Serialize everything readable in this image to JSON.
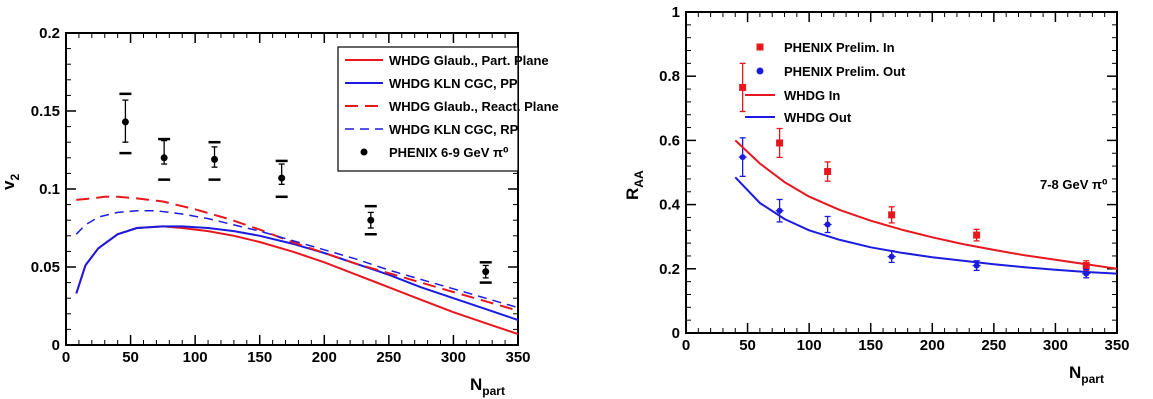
{
  "chart_data": [
    {
      "type": "line",
      "xlabel": "N",
      "xlabel_sub": "part",
      "ylabel": "v",
      "ylabel_sub": "2",
      "xlim": [
        0,
        350
      ],
      "ylim": [
        0,
        0.2
      ],
      "xticks": [
        0,
        50,
        100,
        150,
        200,
        250,
        300,
        350
      ],
      "xtick_labels": [
        "0",
        "50",
        "100",
        "150",
        "200",
        "250",
        "300",
        "350"
      ],
      "yticks": [
        0,
        0.05,
        0.1,
        0.15,
        0.2
      ],
      "ytick_labels": [
        "0",
        "0.05",
        "0.1",
        "0.15",
        "0.2"
      ],
      "grid": false,
      "legend_position": "top-right",
      "series": [
        {
          "name": "WHDG Glaub., Part. Plane",
          "kind": "line",
          "color": "#e8171d",
          "dash": "solid",
          "width": 2,
          "x": [
            8,
            15,
            25,
            40,
            55,
            75,
            90,
            110,
            130,
            150,
            175,
            200,
            225,
            250,
            275,
            300,
            325,
            350
          ],
          "y": [
            0.033,
            0.051,
            0.062,
            0.071,
            0.075,
            0.076,
            0.075,
            0.073,
            0.07,
            0.066,
            0.06,
            0.053,
            0.045,
            0.037,
            0.029,
            0.021,
            0.014,
            0.007
          ]
        },
        {
          "name": "WHDG KLN CGC, PP",
          "kind": "line",
          "color": "#1c1ce0",
          "dash": "solid",
          "width": 2,
          "x": [
            8,
            15,
            25,
            40,
            55,
            75,
            90,
            110,
            130,
            150,
            175,
            200,
            225,
            250,
            275,
            300,
            325,
            350
          ],
          "y": [
            0.033,
            0.051,
            0.062,
            0.071,
            0.075,
            0.076,
            0.076,
            0.075,
            0.073,
            0.07,
            0.065,
            0.059,
            0.052,
            0.045,
            0.037,
            0.03,
            0.023,
            0.016
          ]
        },
        {
          "name": "WHDG Glaub., React. Plane",
          "kind": "line",
          "color": "#e8171d",
          "dash": "long",
          "width": 2,
          "x": [
            8,
            20,
            30,
            40,
            55,
            75,
            100,
            125,
            150,
            175,
            200,
            225,
            250,
            275,
            300,
            325,
            350
          ],
          "y": [
            0.093,
            0.094,
            0.095,
            0.095,
            0.094,
            0.092,
            0.087,
            0.081,
            0.074,
            0.066,
            0.059,
            0.052,
            0.046,
            0.04,
            0.034,
            0.028,
            0.022
          ]
        },
        {
          "name": "WHDG KLN CGC, RP",
          "kind": "line",
          "color": "#1c1ce0",
          "dash": "medium",
          "width": 1.5,
          "x": [
            8,
            15,
            25,
            40,
            55,
            70,
            90,
            110,
            130,
            150,
            175,
            200,
            225,
            250,
            275,
            300,
            325,
            350
          ],
          "y": [
            0.071,
            0.077,
            0.082,
            0.085,
            0.086,
            0.086,
            0.084,
            0.081,
            0.077,
            0.073,
            0.067,
            0.061,
            0.055,
            0.048,
            0.042,
            0.036,
            0.03,
            0.024
          ]
        },
        {
          "name": "PHENIX 6-9 GeV π⁰",
          "kind": "points",
          "color": "#000000",
          "x": [
            46,
            76,
            115,
            167,
            236,
            325
          ],
          "y": [
            0.143,
            0.12,
            0.119,
            0.107,
            0.08,
            0.047
          ],
          "err_lo": [
            0.013,
            0.004,
            0.005,
            0.004,
            0.005,
            0.004
          ],
          "err_hi": [
            0.014,
            0.011,
            0.008,
            0.009,
            0.005,
            0.004
          ],
          "sys_lo": [
            0.02,
            0.014,
            0.013,
            0.012,
            0.009,
            0.007
          ],
          "sys_hi": [
            0.018,
            0.012,
            0.011,
            0.011,
            0.009,
            0.006
          ]
        }
      ]
    },
    {
      "type": "line",
      "xlabel": "N",
      "xlabel_sub": "part",
      "ylabel": "R",
      "ylabel_sub": "AA",
      "xlim": [
        0,
        350
      ],
      "ylim": [
        0,
        1
      ],
      "xticks": [
        0,
        50,
        100,
        150,
        200,
        250,
        300,
        350
      ],
      "xtick_labels": [
        "0",
        "50",
        "100",
        "150",
        "200",
        "250",
        "300",
        "350"
      ],
      "yticks": [
        0,
        0.2,
        0.4,
        0.6,
        0.8,
        1
      ],
      "ytick_labels": [
        "0",
        "0.2",
        "0.4",
        "0.6",
        "0.8",
        "1"
      ],
      "grid": false,
      "legend_position": "top-right",
      "annotation": "7-8 GeV π⁰",
      "series": [
        {
          "name": "PHENIX Prelim. In",
          "kind": "points",
          "marker": "square",
          "color": "#e8171d",
          "x": [
            46,
            76,
            115,
            167,
            236,
            325
          ],
          "y": [
            0.765,
            0.592,
            0.503,
            0.368,
            0.305,
            0.21
          ],
          "err_lo": [
            0.075,
            0.045,
            0.03,
            0.025,
            0.018,
            0.015
          ],
          "err_hi": [
            0.075,
            0.045,
            0.03,
            0.025,
            0.018,
            0.015
          ]
        },
        {
          "name": "PHENIX Prelim. Out",
          "kind": "points",
          "marker": "star",
          "color": "#1c1ce0",
          "x": [
            46,
            76,
            115,
            167,
            236,
            325
          ],
          "y": [
            0.548,
            0.381,
            0.338,
            0.238,
            0.21,
            0.185
          ],
          "err_lo": [
            0.06,
            0.035,
            0.025,
            0.018,
            0.015,
            0.013
          ],
          "err_hi": [
            0.06,
            0.035,
            0.025,
            0.018,
            0.015,
            0.013
          ]
        },
        {
          "name": "WHDG In",
          "kind": "line",
          "color": "#e8171d",
          "dash": "solid",
          "width": 2,
          "x": [
            40,
            60,
            80,
            100,
            125,
            150,
            175,
            200,
            225,
            250,
            275,
            300,
            325,
            350
          ],
          "y": [
            0.6,
            0.528,
            0.47,
            0.425,
            0.383,
            0.35,
            0.322,
            0.298,
            0.277,
            0.259,
            0.242,
            0.228,
            0.214,
            0.2
          ]
        },
        {
          "name": "WHDG Out",
          "kind": "line",
          "color": "#1c1ce0",
          "dash": "solid",
          "width": 2,
          "x": [
            40,
            60,
            80,
            100,
            125,
            150,
            175,
            200,
            225,
            250,
            275,
            300,
            325,
            350
          ],
          "y": [
            0.485,
            0.405,
            0.355,
            0.32,
            0.29,
            0.267,
            0.25,
            0.236,
            0.225,
            0.214,
            0.205,
            0.197,
            0.19,
            0.185
          ]
        }
      ]
    }
  ]
}
